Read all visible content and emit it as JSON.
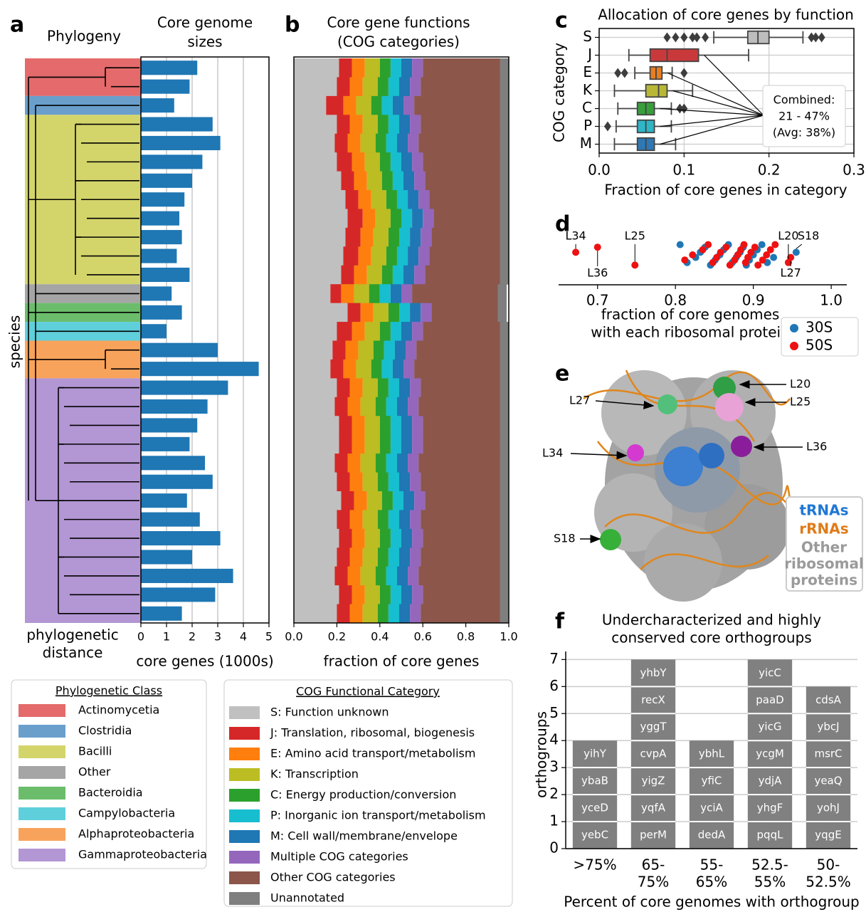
{
  "chart_data": [
    {
      "type": "bar",
      "label": "a",
      "tree_title": "Phylogeny",
      "title": [
        "Core genome",
        "sizes"
      ],
      "ylabel": "species",
      "tree_xlabel": [
        "phylogenetic",
        "distance"
      ],
      "xlabel": "core genes (1000s)",
      "xlim": [
        0,
        5
      ],
      "xticks": [
        0,
        1,
        2,
        3,
        4,
        5
      ],
      "grid": true,
      "color": "#1f77b4",
      "values": [
        2.2,
        1.9,
        1.3,
        2.8,
        3.1,
        2.4,
        2.0,
        1.7,
        1.5,
        1.6,
        1.4,
        1.9,
        1.2,
        1.6,
        1.0,
        3.0,
        4.6,
        3.4,
        2.6,
        2.2,
        1.9,
        2.5,
        2.8,
        1.8,
        2.3,
        3.1,
        2.0,
        3.6,
        2.9,
        1.6
      ],
      "legend": {
        "title": "Phylogenetic Class",
        "entries": [
          {
            "name": "Actinomycetia",
            "color": "#e46a6b",
            "species": 2
          },
          {
            "name": "Clostridia",
            "color": "#6a9fcc",
            "species": 1
          },
          {
            "name": "Bacilli",
            "color": "#d3d56b",
            "species": 9
          },
          {
            "name": "Other",
            "color": "#a5a5a5",
            "species": 1
          },
          {
            "name": "Bacteroidia",
            "color": "#6bbd6b",
            "species": 1
          },
          {
            "name": "Campylobacteria",
            "color": "#5fcfdc",
            "species": 1
          },
          {
            "name": "Alphaproteobacteria",
            "color": "#f8a35b",
            "species": 2
          },
          {
            "name": "Gammaproteobacteria",
            "color": "#b396d4",
            "species": 13
          }
        ]
      }
    },
    {
      "type": "stacked",
      "label": "b",
      "title": [
        "Core gene functions",
        "(COG categories)"
      ],
      "xlabel": "fraction of core genes",
      "xlim": [
        0,
        1
      ],
      "xticks": [
        {
          "value": 0,
          "label": "0.0"
        },
        0.2,
        0.4,
        0.6,
        0.8,
        {
          "value": 1,
          "label": "1.0"
        }
      ],
      "legend_title": "COG Functional Category",
      "series": [
        {
          "name": "S: Function unknown",
          "color": "#c0c0c0",
          "values": [
            0.21,
            0.2,
            0.15,
            0.2,
            0.19,
            0.2,
            0.22,
            0.24,
            0.25,
            0.24,
            0.23,
            0.22,
            0.17,
            0.25,
            0.2,
            0.18,
            0.17,
            0.2,
            0.19,
            0.21,
            0.21,
            0.19,
            0.2,
            0.22,
            0.2,
            0.21,
            0.2,
            0.19,
            0.21,
            0.2
          ]
        },
        {
          "name": "J: Translation, ribosomal, biogenesis",
          "color": "#d62728",
          "values": [
            0.06,
            0.06,
            0.08,
            0.06,
            0.06,
            0.07,
            0.06,
            0.06,
            0.07,
            0.07,
            0.07,
            0.06,
            0.05,
            0.06,
            0.07,
            0.06,
            0.06,
            0.06,
            0.06,
            0.06,
            0.06,
            0.06,
            0.06,
            0.06,
            0.06,
            0.06,
            0.06,
            0.06,
            0.06,
            0.06
          ]
        },
        {
          "name": "E: Amino acid transport/metabolism",
          "color": "#ff7f0e",
          "values": [
            0.06,
            0.06,
            0.06,
            0.06,
            0.06,
            0.06,
            0.06,
            0.06,
            0.06,
            0.06,
            0.06,
            0.06,
            0.06,
            0.06,
            0.06,
            0.06,
            0.06,
            0.06,
            0.06,
            0.06,
            0.06,
            0.06,
            0.06,
            0.06,
            0.06,
            0.06,
            0.06,
            0.06,
            0.06,
            0.06
          ]
        },
        {
          "name": "K: Transcription",
          "color": "#bcbd22",
          "values": [
            0.07,
            0.07,
            0.07,
            0.07,
            0.07,
            0.07,
            0.07,
            0.07,
            0.07,
            0.07,
            0.07,
            0.07,
            0.07,
            0.07,
            0.07,
            0.07,
            0.07,
            0.07,
            0.07,
            0.07,
            0.07,
            0.07,
            0.07,
            0.07,
            0.07,
            0.07,
            0.07,
            0.07,
            0.07,
            0.07
          ]
        },
        {
          "name": "C: Energy production/conversion",
          "color": "#2ca02c",
          "values": [
            0.05,
            0.05,
            0.05,
            0.05,
            0.05,
            0.05,
            0.05,
            0.05,
            0.05,
            0.05,
            0.05,
            0.05,
            0.05,
            0.05,
            0.05,
            0.05,
            0.05,
            0.05,
            0.05,
            0.05,
            0.05,
            0.05,
            0.05,
            0.05,
            0.05,
            0.05,
            0.05,
            0.05,
            0.05,
            0.05
          ]
        },
        {
          "name": "P: Inorganic ion transport/metabolism",
          "color": "#17becf",
          "values": [
            0.05,
            0.05,
            0.05,
            0.05,
            0.05,
            0.05,
            0.05,
            0.05,
            0.05,
            0.05,
            0.05,
            0.05,
            0.05,
            0.05,
            0.05,
            0.05,
            0.05,
            0.05,
            0.05,
            0.05,
            0.05,
            0.05,
            0.05,
            0.05,
            0.05,
            0.05,
            0.05,
            0.05,
            0.05,
            0.05
          ]
        },
        {
          "name": "M: Cell wall/membrane/envelope",
          "color": "#1f77b4",
          "values": [
            0.05,
            0.05,
            0.05,
            0.05,
            0.05,
            0.05,
            0.05,
            0.05,
            0.05,
            0.05,
            0.05,
            0.05,
            0.05,
            0.05,
            0.05,
            0.05,
            0.05,
            0.05,
            0.05,
            0.05,
            0.05,
            0.05,
            0.05,
            0.05,
            0.05,
            0.05,
            0.05,
            0.05,
            0.05,
            0.05
          ]
        },
        {
          "name": "Multiple COG categories",
          "color": "#9467bd",
          "values": [
            0.05,
            0.05,
            0.05,
            0.05,
            0.05,
            0.05,
            0.05,
            0.05,
            0.05,
            0.05,
            0.05,
            0.05,
            0.05,
            0.05,
            0.05,
            0.05,
            0.05,
            0.05,
            0.05,
            0.05,
            0.05,
            0.05,
            0.05,
            0.05,
            0.05,
            0.05,
            0.05,
            0.05,
            0.05,
            0.05
          ]
        },
        {
          "name": "Other COG categories",
          "color": "#8c564b",
          "values": [
            0.36,
            0.37,
            0.4,
            0.37,
            0.38,
            0.36,
            0.35,
            0.33,
            0.31,
            0.32,
            0.33,
            0.35,
            0.4,
            0.31,
            0.36,
            0.39,
            0.4,
            0.37,
            0.38,
            0.36,
            0.36,
            0.38,
            0.37,
            0.35,
            0.37,
            0.36,
            0.37,
            0.38,
            0.36,
            0.37
          ]
        },
        {
          "name": "Unannotated",
          "color": "#7f7f7f",
          "values": [
            0.04,
            0.04,
            0.04,
            0.04,
            0.04,
            0.04,
            0.04,
            0.04,
            0.04,
            0.04,
            0.04,
            0.04,
            0.04,
            0.04,
            0.04,
            0.04,
            0.04,
            0.04,
            0.04,
            0.04,
            0.04,
            0.04,
            0.04,
            0.04,
            0.04,
            0.04,
            0.04,
            0.04,
            0.04,
            0.04
          ]
        }
      ]
    },
    {
      "type": "box",
      "label": "c",
      "title": "Allocation of core genes by function",
      "ylabel": "COG category",
      "xlabel": "Fraction of core genes in category",
      "xlim": [
        0,
        0.3
      ],
      "xticks": [
        {
          "value": 0,
          "label": "0.0"
        },
        0.1,
        0.2,
        0.3
      ],
      "grid": true,
      "categories": [
        "S",
        "J",
        "E",
        "K",
        "C",
        "P",
        "M"
      ],
      "boxes": [
        {
          "color": "#bdbdbd",
          "whislo": 0.135,
          "q1": 0.175,
          "med": 0.187,
          "q3": 0.2,
          "whishi": 0.24,
          "fliers": [
            0.08,
            0.09,
            0.1,
            0.11,
            0.115,
            0.125,
            0.25,
            0.255,
            0.262
          ]
        },
        {
          "color": "#c9393b",
          "whislo": 0.035,
          "q1": 0.06,
          "med": 0.08,
          "q3": 0.117,
          "whishi": 0.176,
          "fliers": []
        },
        {
          "color": "#e67e22",
          "whislo": 0.042,
          "q1": 0.06,
          "med": 0.067,
          "q3": 0.074,
          "whishi": 0.086,
          "fliers": [
            0.022,
            0.03,
            0.1
          ]
        },
        {
          "color": "#b8b836",
          "whislo": 0.018,
          "q1": 0.055,
          "med": 0.07,
          "q3": 0.08,
          "whishi": 0.11,
          "fliers": []
        },
        {
          "color": "#389e3c",
          "whislo": 0.022,
          "q1": 0.045,
          "med": 0.055,
          "q3": 0.065,
          "whishi": 0.085,
          "fliers": [
            0.095,
            0.1
          ]
        },
        {
          "color": "#2fb5c6",
          "whislo": 0.02,
          "q1": 0.045,
          "med": 0.055,
          "q3": 0.065,
          "whishi": 0.085,
          "fliers": [
            0.01
          ]
        },
        {
          "color": "#2f78b3",
          "whislo": 0.018,
          "q1": 0.045,
          "med": 0.055,
          "q3": 0.065,
          "whishi": 0.09,
          "fliers": []
        }
      ],
      "annotation": [
        "Combined:",
        "21 - 47%",
        "(Avg: 38%)"
      ]
    },
    {
      "type": "strip",
      "label": "d",
      "xlabel": [
        "fraction of core genomes",
        "with each ribosomal protein"
      ],
      "xlim": [
        0.65,
        1.02
      ],
      "xticks": [
        0.7,
        0.8,
        0.9,
        {
          "value": 1,
          "label": "1.0"
        }
      ],
      "series": [
        {
          "name": "30S",
          "color": "#1f77b4",
          "values": [
            0.806,
            0.815,
            0.826,
            0.832,
            0.838,
            0.845,
            0.851,
            0.857,
            0.862,
            0.868,
            0.873,
            0.878,
            0.883,
            0.887,
            0.891,
            0.895,
            0.9,
            0.905,
            0.911,
            0.918,
            0.926,
            0.955
          ],
          "point_labels": [
            null,
            null,
            null,
            null,
            null,
            null,
            null,
            null,
            null,
            null,
            null,
            null,
            null,
            null,
            null,
            null,
            null,
            null,
            null,
            null,
            null,
            "S18"
          ]
        },
        {
          "name": "50S",
          "color": "#ee1111",
          "values": [
            0.672,
            0.7,
            0.748,
            0.812,
            0.822,
            0.835,
            0.842,
            0.848,
            0.853,
            0.858,
            0.865,
            0.87,
            0.876,
            0.88,
            0.884,
            0.888,
            0.89,
            0.893,
            0.897,
            0.902,
            0.906,
            0.912,
            0.917,
            0.922,
            0.928,
            0.945,
            0.948
          ],
          "point_labels": [
            "L34",
            "L36",
            "L25",
            null,
            null,
            null,
            null,
            null,
            null,
            null,
            null,
            null,
            null,
            null,
            null,
            null,
            null,
            null,
            null,
            null,
            null,
            null,
            null,
            null,
            null,
            "L20",
            "L27"
          ]
        }
      ]
    },
    {
      "type": "image",
      "label": "e",
      "callouts": [
        "L20",
        "L25",
        "L27",
        "L36",
        "L34",
        "S18"
      ],
      "legend": [
        {
          "text": [
            "tRNAs"
          ],
          "color": "#1f77d4"
        },
        {
          "text": [
            "rRNAs"
          ],
          "color": "#e07b19"
        },
        {
          "text": [
            "Other",
            "ribosomal",
            "proteins"
          ],
          "color": "#9a9a9a"
        }
      ]
    },
    {
      "type": "tiles",
      "label": "f",
      "title": [
        "Undercharacterized and highly",
        "conserved core orthogroups"
      ],
      "ylabel": "orthogroups",
      "xlabel": "Percent of core genomes with orthogroup",
      "ylim": [
        0,
        7.3
      ],
      "yticks": [
        0,
        1,
        2,
        3,
        4,
        5,
        6,
        7
      ],
      "grid": true,
      "color": "#808080",
      "categories": [
        [
          ">75%"
        ],
        [
          "65-",
          "75%"
        ],
        [
          "55-",
          "65%"
        ],
        [
          "52.5-",
          "55%"
        ],
        [
          "50-",
          "52.5%"
        ]
      ],
      "values": [
        4,
        7,
        4,
        7,
        6
      ],
      "genes": [
        [
          "yebC",
          "yceD",
          "ybaB",
          "yihY"
        ],
        [
          "perM",
          "yqfA",
          "yigZ",
          "cvpA",
          "yggT",
          "recX",
          "yhbY"
        ],
        [
          "dedA",
          "yciA",
          "yfiC",
          "ybhL"
        ],
        [
          "pqqL",
          "yhgF",
          "ydjA",
          "ycgM",
          "yicG",
          "paaD",
          "yicC"
        ],
        [
          "yqgE",
          "yohJ",
          "yeaQ",
          "msrC",
          "ybcJ",
          "cdsA"
        ]
      ]
    }
  ]
}
